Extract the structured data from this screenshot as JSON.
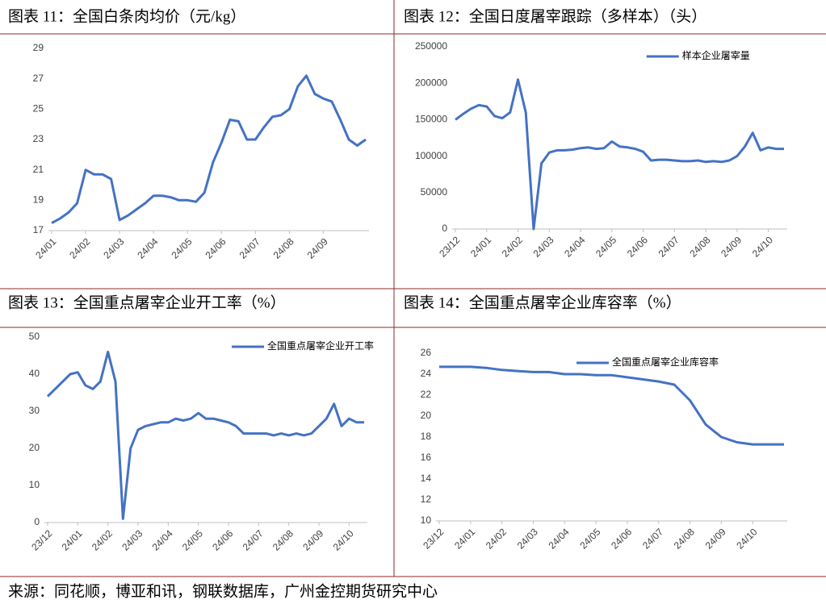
{
  "chart_data": [
    {
      "type": "line",
      "title": "图表 11：全国白条肉均价（元/kg）",
      "color": "#4472c4",
      "categories": [
        "24/01",
        null,
        null,
        null,
        "24/02",
        null,
        null,
        null,
        "24/03",
        null,
        null,
        null,
        "24/04",
        null,
        null,
        null,
        "24/05",
        null,
        null,
        null,
        "24/06",
        null,
        null,
        null,
        "24/07",
        null,
        null,
        null,
        "24/08",
        null,
        null,
        null,
        "24/09",
        null,
        null,
        null,
        null,
        null
      ],
      "values": [
        17.5,
        17.8,
        18.2,
        18.8,
        21.0,
        20.7,
        20.7,
        20.4,
        17.7,
        18.0,
        18.4,
        18.8,
        19.3,
        19.3,
        19.2,
        19.0,
        19.0,
        18.9,
        19.5,
        21.5,
        22.8,
        24.3,
        24.2,
        23.0,
        23.0,
        23.8,
        24.5,
        24.6,
        25.0,
        26.5,
        27.2,
        26.0,
        25.7,
        25.5,
        24.3,
        23.0,
        22.6,
        23.0
      ],
      "ylim": [
        17,
        29
      ],
      "yticks": [
        17,
        19,
        21,
        23,
        25,
        27,
        29
      ]
    },
    {
      "type": "line",
      "title": "图表 12：全国日度屠宰跟踪（多样本）（头）",
      "legend": "top-right",
      "categories": [
        "23/12",
        null,
        null,
        null,
        "24/01",
        null,
        null,
        null,
        "24/02",
        null,
        null,
        null,
        "24/03",
        null,
        null,
        null,
        "24/04",
        null,
        null,
        null,
        "24/05",
        null,
        null,
        null,
        "24/06",
        null,
        null,
        null,
        "24/07",
        null,
        null,
        null,
        "24/08",
        null,
        null,
        null,
        "24/09",
        null,
        null,
        null,
        "24/10",
        null,
        null
      ],
      "series": [
        {
          "name": "样本企业屠宰量",
          "color": "#4472c4",
          "values": [
            150000,
            158000,
            165000,
            170000,
            168000,
            155000,
            152000,
            160000,
            205000,
            160000,
            0,
            90000,
            105000,
            108000,
            108000,
            109000,
            111000,
            112000,
            110000,
            111000,
            120000,
            113000,
            112000,
            110000,
            106000,
            94000,
            95000,
            95000,
            94000,
            93000,
            93000,
            94000,
            92000,
            93000,
            92000,
            94000,
            100000,
            113000,
            132000,
            108000,
            112000,
            110000,
            110000
          ]
        }
      ],
      "ylim": [
        0,
        250000
      ],
      "yticks": [
        0,
        50000,
        100000,
        150000,
        200000,
        250000
      ]
    },
    {
      "type": "line",
      "title": "图表 13：全国重点屠宰企业开工率（%）",
      "legend": "top-right",
      "categories": [
        "23/12",
        null,
        null,
        null,
        "24/01",
        null,
        null,
        null,
        "24/02",
        null,
        null,
        null,
        "24/03",
        null,
        null,
        null,
        "24/04",
        null,
        null,
        null,
        "24/05",
        null,
        null,
        null,
        "24/06",
        null,
        null,
        null,
        "24/07",
        null,
        null,
        null,
        "24/08",
        null,
        null,
        null,
        "24/09",
        null,
        null,
        null,
        "24/10",
        null,
        null
      ],
      "series": [
        {
          "name": "全国重点屠宰企业开工率",
          "color": "#4472c4",
          "values": [
            34,
            36,
            38,
            40,
            40.5,
            37,
            36,
            38,
            46,
            38,
            1,
            20,
            25,
            26,
            26.5,
            27,
            27,
            28,
            27.5,
            28,
            29.5,
            28,
            28,
            27.5,
            27,
            26,
            24,
            24,
            24,
            24,
            23.5,
            24,
            23.5,
            24,
            23.5,
            24,
            26,
            28,
            32,
            26,
            28,
            27,
            27
          ]
        }
      ],
      "ylim": [
        0,
        50
      ],
      "yticks": [
        0,
        10,
        20,
        30,
        40,
        50
      ]
    },
    {
      "type": "line",
      "title": "图表 14：全国重点屠宰企业库容率（%）",
      "legend": "top-left",
      "categories": [
        "23/12",
        null,
        "24/01",
        null,
        "24/02",
        null,
        "24/03",
        null,
        "24/04",
        null,
        "24/05",
        null,
        "24/06",
        null,
        "24/07",
        null,
        "24/08",
        null,
        "24/09",
        null,
        "24/10",
        null,
        null
      ],
      "series": [
        {
          "name": "全国重点屠宰企业库容率",
          "color": "#4472c4",
          "values": [
            24.7,
            24.7,
            24.7,
            24.6,
            24.4,
            24.3,
            24.2,
            24.2,
            24.0,
            24.0,
            23.9,
            23.9,
            23.7,
            23.5,
            23.3,
            23.0,
            21.5,
            19.2,
            18.0,
            17.5,
            17.3,
            17.3,
            17.3
          ]
        }
      ],
      "ylim": [
        10,
        26
      ],
      "yticks": [
        10,
        12,
        14,
        16,
        18,
        20,
        22,
        24,
        26
      ]
    }
  ],
  "source": "来源：同花顺，博亚和讯，钢联数据库，广州金控期货研究中心"
}
